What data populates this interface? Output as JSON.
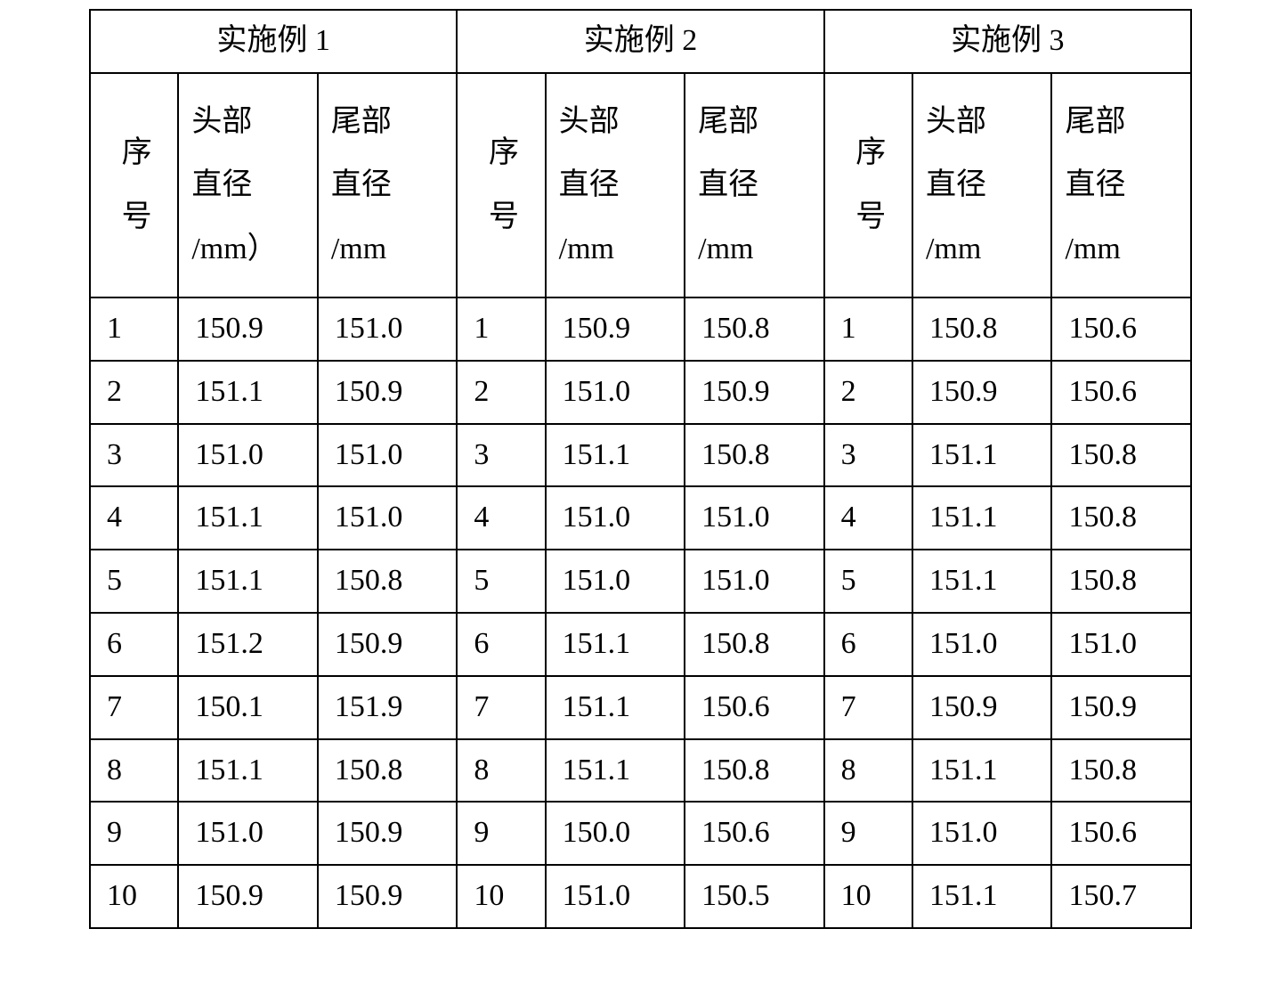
{
  "table": {
    "type": "table",
    "border_color": "#000000",
    "background_color": "#ffffff",
    "text_color": "#000000",
    "font_family": "SimSun / Times New Roman",
    "header_fontsize_pt": 26,
    "cell_fontsize_pt": 26,
    "groups": [
      {
        "title": "实施例 1"
      },
      {
        "title": "实施例 2"
      },
      {
        "title": "实施例 3"
      }
    ],
    "sub_headers": {
      "seq": "序\n号",
      "head_dia_paren": "头部\n直径\n/mm）",
      "head_dia": "头部\n直径\n/mm",
      "tail_dia": "尾部\n直径\n/mm"
    },
    "rows": [
      {
        "g1": {
          "n": "1",
          "h": "150.9",
          "t": "151.0"
        },
        "g2": {
          "n": "1",
          "h": "150.9",
          "t": "150.8"
        },
        "g3": {
          "n": "1",
          "h": "150.8",
          "t": "150.6"
        }
      },
      {
        "g1": {
          "n": "2",
          "h": "151.1",
          "t": "150.9"
        },
        "g2": {
          "n": "2",
          "h": "151.0",
          "t": "150.9"
        },
        "g3": {
          "n": "2",
          "h": "150.9",
          "t": "150.6"
        }
      },
      {
        "g1": {
          "n": "3",
          "h": "151.0",
          "t": "151.0"
        },
        "g2": {
          "n": "3",
          "h": "151.1",
          "t": "150.8"
        },
        "g3": {
          "n": "3",
          "h": "151.1",
          "t": "150.8"
        }
      },
      {
        "g1": {
          "n": "4",
          "h": "151.1",
          "t": "151.0"
        },
        "g2": {
          "n": "4",
          "h": "151.0",
          "t": "151.0"
        },
        "g3": {
          "n": "4",
          "h": "151.1",
          "t": "150.8"
        }
      },
      {
        "g1": {
          "n": "5",
          "h": "151.1",
          "t": "150.8"
        },
        "g2": {
          "n": "5",
          "h": "151.0",
          "t": "151.0"
        },
        "g3": {
          "n": "5",
          "h": "151.1",
          "t": "150.8"
        }
      },
      {
        "g1": {
          "n": "6",
          "h": "151.2",
          "t": "150.9"
        },
        "g2": {
          "n": "6",
          "h": "151.1",
          "t": "150.8"
        },
        "g3": {
          "n": "6",
          "h": "151.0",
          "t": "151.0"
        }
      },
      {
        "g1": {
          "n": "7",
          "h": "150.1",
          "t": "151.9"
        },
        "g2": {
          "n": "7",
          "h": "151.1",
          "t": "150.6"
        },
        "g3": {
          "n": "7",
          "h": "150.9",
          "t": "150.9"
        }
      },
      {
        "g1": {
          "n": "8",
          "h": "151.1",
          "t": "150.8"
        },
        "g2": {
          "n": "8",
          "h": "151.1",
          "t": "150.8"
        },
        "g3": {
          "n": "8",
          "h": "151.1",
          "t": "150.8"
        }
      },
      {
        "g1": {
          "n": "9",
          "h": "151.0",
          "t": "150.9"
        },
        "g2": {
          "n": "9",
          "h": "150.0",
          "t": "150.6"
        },
        "g3": {
          "n": "9",
          "h": "151.0",
          "t": "150.6"
        }
      },
      {
        "g1": {
          "n": "10",
          "h": "150.9",
          "t": "150.9"
        },
        "g2": {
          "n": "10",
          "h": "151.0",
          "t": "150.5"
        },
        "g3": {
          "n": "10",
          "h": "151.1",
          "t": "150.7"
        }
      }
    ]
  }
}
